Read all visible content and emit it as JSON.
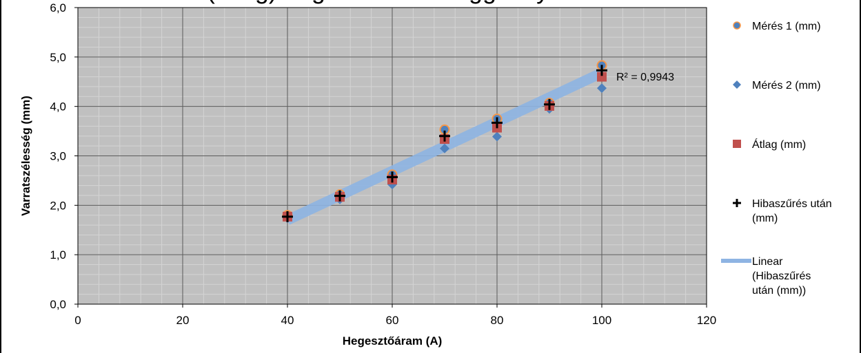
{
  "chart_data": {
    "type": "scatter",
    "title": "(átlag) hegesztőáram függvényében",
    "xlabel": "Hegesztőáram (A)",
    "ylabel": "Varratszélesség (mm)",
    "xlim": [
      0,
      120
    ],
    "ylim": [
      0,
      6
    ],
    "x_ticks": [
      0,
      20,
      40,
      60,
      80,
      100,
      120
    ],
    "x_tick_labels": [
      "0",
      "20",
      "40",
      "60",
      "80",
      "100",
      "120"
    ],
    "y_ticks": [
      0,
      1,
      2,
      3,
      4,
      5,
      6
    ],
    "y_tick_labels": [
      "0,0",
      "1,0",
      "2,0",
      "3,0",
      "4,0",
      "5,0",
      "6,0"
    ],
    "grid": true,
    "minor_grid": true,
    "legend_position": "right",
    "x": [
      40,
      50,
      60,
      70,
      80,
      90,
      100
    ],
    "series": [
      {
        "name": "Mérés 1 (mm)",
        "marker": "circle",
        "color": "#4f81bd",
        "edge_color": "#f79646",
        "values": [
          1.8,
          2.22,
          2.62,
          3.53,
          3.75,
          4.07,
          4.83
        ]
      },
      {
        "name": "Mérés 2 (mm)",
        "marker": "diamond",
        "color": "#4f81bd",
        "values": [
          1.74,
          2.12,
          2.42,
          3.15,
          3.39,
          3.95,
          4.37
        ]
      },
      {
        "name": "Átlag (mm)",
        "marker": "square",
        "color": "#c0504d",
        "values": [
          1.77,
          2.17,
          2.52,
          3.34,
          3.57,
          4.01,
          4.6
        ]
      },
      {
        "name": "Hibaszűrés után (mm)",
        "marker": "plus",
        "color": "#000000",
        "values": [
          1.77,
          2.19,
          2.57,
          3.4,
          3.67,
          4.04,
          4.73
        ]
      }
    ],
    "trendline": {
      "name": "Linear (Hibaszűrés után (mm))",
      "type": "linear",
      "for_series": "Hibaszűrés után (mm)",
      "x_range": [
        40,
        100
      ],
      "y_range": [
        1.7,
        4.68
      ],
      "color": "#8eb4e3"
    },
    "annotations": [
      {
        "text": "R² = 0,9943"
      }
    ]
  },
  "colors": {
    "plot_background": "#c0c0c0",
    "major_grid": "#5a5a5a",
    "minor_grid": "#d4d4d4"
  }
}
